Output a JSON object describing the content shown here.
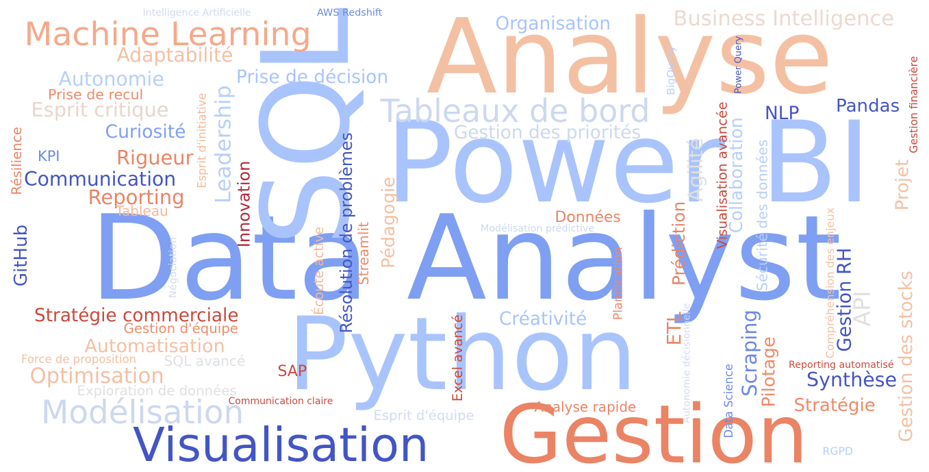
{
  "words": [
    {
      "text": "Data Analyst",
      "color": "#7f9ff2",
      "orient": "h"
    },
    {
      "text": "Power BI",
      "color": "#a9c4fc",
      "orient": "h"
    },
    {
      "text": "Python",
      "color": "#a9c4fc",
      "orient": "h"
    },
    {
      "text": "Analyse",
      "color": "#f4c0a3",
      "orient": "h"
    },
    {
      "text": "Gestion",
      "color": "#ea8465",
      "orient": "h"
    },
    {
      "text": "SQL",
      "color": "#a9c4fc",
      "orient": "v"
    },
    {
      "text": "Visualisation",
      "color": "#4355c4",
      "orient": "h"
    },
    {
      "text": "Machine Learning",
      "color": "#f4a98a",
      "orient": "h"
    },
    {
      "text": "Tableaux de bord",
      "color": "#cdd8ee",
      "orient": "h"
    },
    {
      "text": "Business Intelligence",
      "color": "#ecd9cf",
      "orient": "h"
    },
    {
      "text": "Modélisation",
      "color": "#cdd8ee",
      "orient": "h"
    },
    {
      "text": "Intelligence Artificielle",
      "color": "#d2dbef",
      "orient": "h"
    },
    {
      "text": "AWS Redshift",
      "color": "#6b89e6",
      "orient": "h"
    },
    {
      "text": "Organisation",
      "color": "#a9c4fc",
      "orient": "h"
    },
    {
      "text": "Adaptabilité",
      "color": "#f4c0a3",
      "orient": "h"
    },
    {
      "text": "Autonomie",
      "color": "#b7cff9",
      "orient": "h"
    },
    {
      "text": "Prise de décision",
      "color": "#a9c4fc",
      "orient": "h"
    },
    {
      "text": "Prise de recul",
      "color": "#ef8a68",
      "orient": "h"
    },
    {
      "text": "Esprit critique",
      "color": "#e7d6cc",
      "orient": "h"
    },
    {
      "text": "Curiosité",
      "color": "#7f9ff2",
      "orient": "h"
    },
    {
      "text": "Gestion des priorités",
      "color": "#cdd8ee",
      "orient": "h"
    },
    {
      "text": "NLP",
      "color": "#4355c4",
      "orient": "h"
    },
    {
      "text": "Pandas",
      "color": "#4355c4",
      "orient": "h"
    },
    {
      "text": "KPI",
      "color": "#6b89e6",
      "orient": "h"
    },
    {
      "text": "Rigueur",
      "color": "#ea8465",
      "orient": "h"
    },
    {
      "text": "Communication",
      "color": "#4355c4",
      "orient": "h"
    },
    {
      "text": "Reporting",
      "color": "#ea8465",
      "orient": "h"
    },
    {
      "text": "Tableau",
      "color": "#f4b89a",
      "orient": "h"
    },
    {
      "text": "Données",
      "color": "#ea8465",
      "orient": "h"
    },
    {
      "text": "Modélisation prédictive",
      "color": "#cdd8ee",
      "orient": "h"
    },
    {
      "text": "Stratégie commerciale",
      "color": "#c94a3c",
      "orient": "h"
    },
    {
      "text": "Gestion d'équipe",
      "color": "#ef8a68",
      "orient": "h"
    },
    {
      "text": "Créativité",
      "color": "#a9c4fc",
      "orient": "h"
    },
    {
      "text": "Automatisation",
      "color": "#f4c0a3",
      "orient": "h"
    },
    {
      "text": "Force de proposition",
      "color": "#f4c0a3",
      "orient": "h"
    },
    {
      "text": "SQL avancé",
      "color": "#e0e0e0",
      "orient": "h"
    },
    {
      "text": "Optimisation",
      "color": "#f4c0a3",
      "orient": "h"
    },
    {
      "text": "SAP",
      "color": "#c94a3c",
      "orient": "h"
    },
    {
      "text": "Exploration de données",
      "color": "#e0e0e0",
      "orient": "h"
    },
    {
      "text": "Communication claire",
      "color": "#c94a3c",
      "orient": "h"
    },
    {
      "text": "Analyse rapide",
      "color": "#ea8465",
      "orient": "h"
    },
    {
      "text": "Esprit d'équipe",
      "color": "#d2dbef",
      "orient": "h"
    },
    {
      "text": "Synthèse",
      "color": "#4355c4",
      "orient": "h"
    },
    {
      "text": "Stratégie",
      "color": "#ef8a68",
      "orient": "h"
    },
    {
      "text": "Reporting automatisé",
      "color": "#c94a3c",
      "orient": "h"
    },
    {
      "text": "RGPD",
      "color": "#b7cff9",
      "orient": "h"
    },
    {
      "text": "Résilience",
      "color": "#ea8465",
      "orient": "v"
    },
    {
      "text": "Esprit d'initiative",
      "color": "#f4b89a",
      "orient": "v"
    },
    {
      "text": "Leadership",
      "color": "#b7cff9",
      "orient": "v"
    },
    {
      "text": "GitHub",
      "color": "#4355c4",
      "orient": "v"
    },
    {
      "text": "Négociation",
      "color": "#d2dbef",
      "orient": "v"
    },
    {
      "text": "Innovation",
      "color": "#b5283a",
      "orient": "v"
    },
    {
      "text": "Écoute active",
      "color": "#f4b89a",
      "orient": "v"
    },
    {
      "text": "Résolution de problèmes",
      "color": "#4355c4",
      "orient": "v"
    },
    {
      "text": "Streamlit",
      "color": "#ef8a68",
      "orient": "v"
    },
    {
      "text": "Pédagogie",
      "color": "#f4c0a3",
      "orient": "v"
    },
    {
      "text": "Excel avancé",
      "color": "#c94a3c",
      "orient": "v"
    },
    {
      "text": "Planification",
      "color": "#ef8a68",
      "orient": "v"
    },
    {
      "text": "ETL",
      "color": "#ea8465",
      "orient": "v"
    },
    {
      "text": "Prédiction",
      "color": "#ea8465",
      "orient": "v"
    },
    {
      "text": "Agilité",
      "color": "#e0e0e0",
      "orient": "v"
    },
    {
      "text": "Collaboration",
      "color": "#b7cff9",
      "orient": "v"
    },
    {
      "text": "Visualisation avancée",
      "color": "#c94a3c",
      "orient": "v"
    },
    {
      "text": "Data Science",
      "color": "#6b89e6",
      "orient": "v"
    },
    {
      "text": "Scraping",
      "color": "#6b89e6",
      "orient": "v"
    },
    {
      "text": "Sécurité des données",
      "color": "#b7cff9",
      "orient": "v"
    },
    {
      "text": "Pilotage",
      "color": "#ef8a68",
      "orient": "v"
    },
    {
      "text": "Autonomie décisionnelle",
      "color": "#d2dbef",
      "orient": "v"
    },
    {
      "text": "BigQuery",
      "color": "#b7cff9",
      "orient": "v"
    },
    {
      "text": "Power Query",
      "color": "#4355c4",
      "orient": "v"
    },
    {
      "text": "Gestion RH",
      "color": "#4355c4",
      "orient": "v"
    },
    {
      "text": "API",
      "color": "#e0e0e0",
      "orient": "v"
    },
    {
      "text": "Compréhension des enjeux",
      "color": "#f4c0a3",
      "orient": "v"
    },
    {
      "text": "Gestion financière",
      "color": "#c94a3c",
      "orient": "v"
    },
    {
      "text": "Projet",
      "color": "#f4c0a3",
      "orient": "v"
    },
    {
      "text": "Gestion des stocks",
      "color": "#f4c0a3",
      "orient": "v"
    }
  ]
}
